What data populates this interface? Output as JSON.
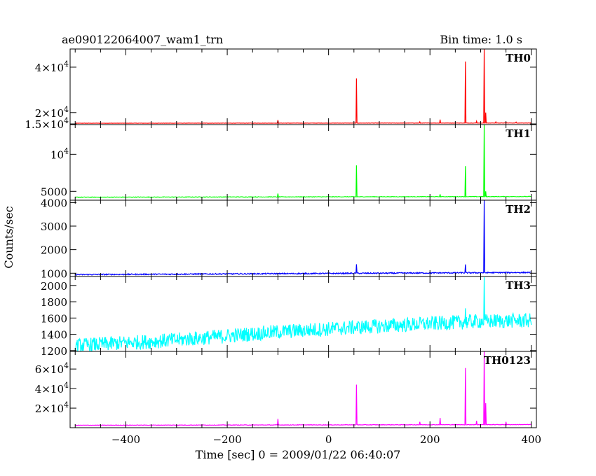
{
  "chart_data": {
    "type": "line",
    "title": "ae090122064007_wam1_trn",
    "bin_label": "Bin time: 1.0 s",
    "xlabel": "Time [sec] 0 = 2009/01/22 06:40:07",
    "ylabel": "Counts/sec",
    "xlim": [
      -510,
      410
    ],
    "x_ticks": [
      {
        "v": -400,
        "label": "−400"
      },
      {
        "v": -200,
        "label": "−200"
      },
      {
        "v": 0,
        "label": "0"
      },
      {
        "v": 200,
        "label": "200"
      },
      {
        "v": 400,
        "label": "400"
      }
    ],
    "panels": [
      {
        "name": "TH0",
        "color": "#ff0000",
        "ylim": [
          14700,
          48000
        ],
        "ticks": [
          {
            "v": 15000,
            "label": "1.5×10",
            "exp": "4"
          },
          {
            "v": 20000,
            "label": "2×10",
            "exp": "4"
          },
          {
            "v": 40000,
            "label": "4×10",
            "exp": "4"
          }
        ],
        "base": [
          [
            -500,
            15300
          ],
          [
            400,
            15400
          ]
        ],
        "spikes": [
          [
            -100,
            16700
          ],
          [
            55,
            35000
          ],
          [
            180,
            15900
          ],
          [
            220,
            16900
          ],
          [
            270,
            42500
          ],
          [
            292,
            16200
          ],
          [
            307,
            48000
          ],
          [
            310,
            20000
          ],
          [
            330,
            15900
          ],
          [
            350,
            15800
          ],
          [
            370,
            15800
          ]
        ],
        "noise": 60
      },
      {
        "name": "TH1",
        "color": "#00ff00",
        "ylim": [
          3800,
          14000
        ],
        "ticks": [
          {
            "v": 5000,
            "label": "5000",
            "exp": ""
          },
          {
            "v": 10000,
            "label": "10",
            "exp": "4"
          }
        ],
        "base": [
          [
            -500,
            4200
          ],
          [
            400,
            4300
          ]
        ],
        "spikes": [
          [
            -100,
            4700
          ],
          [
            55,
            8500
          ],
          [
            220,
            4600
          ],
          [
            270,
            8400
          ],
          [
            307,
            14000
          ],
          [
            310,
            5000
          ]
        ],
        "noise": 40
      },
      {
        "name": "TH2",
        "color": "#0000ff",
        "ylim": [
          860,
          4100
        ],
        "ticks": [
          {
            "v": 1000,
            "label": "1000",
            "exp": ""
          },
          {
            "v": 2000,
            "label": "2000",
            "exp": ""
          },
          {
            "v": 3000,
            "label": "3000",
            "exp": ""
          },
          {
            "v": 4000,
            "label": "4000",
            "exp": ""
          }
        ],
        "base": [
          [
            -500,
            940
          ],
          [
            400,
            1030
          ]
        ],
        "spikes": [
          [
            55,
            1380
          ],
          [
            270,
            1370
          ],
          [
            307,
            4100
          ]
        ],
        "noise": 25
      },
      {
        "name": "TH3",
        "color": "#00ffff",
        "ylim": [
          1190,
          2110
        ],
        "ticks": [
          {
            "v": 1200,
            "label": "1200",
            "exp": ""
          },
          {
            "v": 1400,
            "label": "1400",
            "exp": ""
          },
          {
            "v": 1600,
            "label": "1600",
            "exp": ""
          },
          {
            "v": 1800,
            "label": "1800",
            "exp": ""
          },
          {
            "v": 2000,
            "label": "2000",
            "exp": ""
          }
        ],
        "base": [
          [
            -500,
            1260
          ],
          [
            -300,
            1330
          ],
          [
            -100,
            1430
          ],
          [
            100,
            1500
          ],
          [
            300,
            1560
          ],
          [
            400,
            1570
          ]
        ],
        "spikes": [
          [
            307,
            2100
          ],
          [
            270,
            1720
          ]
        ],
        "noise": 90
      },
      {
        "name": "TH0123",
        "color": "#ff00ff",
        "ylim": [
          0,
          78000
        ],
        "ticks": [
          {
            "v": 20000,
            "label": "2×10",
            "exp": "4"
          },
          {
            "v": 40000,
            "label": "4×10",
            "exp": "4"
          },
          {
            "v": 60000,
            "label": "6×10",
            "exp": "4"
          }
        ],
        "base": [
          [
            -500,
            2500
          ],
          [
            400,
            3200
          ]
        ],
        "spikes": [
          [
            -100,
            9000
          ],
          [
            55,
            44000
          ],
          [
            180,
            6000
          ],
          [
            220,
            10000
          ],
          [
            270,
            61000
          ],
          [
            292,
            7000
          ],
          [
            307,
            78000
          ],
          [
            310,
            25000
          ],
          [
            350,
            6000
          ]
        ],
        "noise": 250
      }
    ]
  }
}
